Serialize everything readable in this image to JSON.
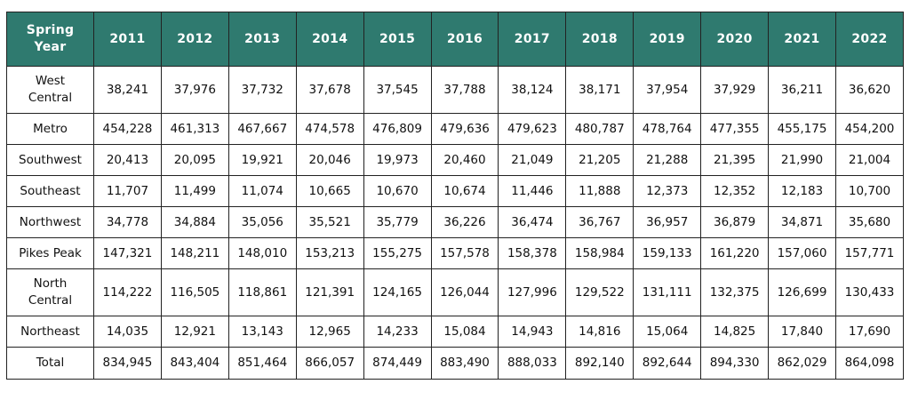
{
  "table": {
    "header": {
      "first_line1": "Spring",
      "first_line2": "Year",
      "years": [
        "2011",
        "2012",
        "2013",
        "2014",
        "2015",
        "2016",
        "2017",
        "2018",
        "2019",
        "2020",
        "2021",
        "2022"
      ]
    },
    "rows": [
      {
        "region": "West\nCentral",
        "values": [
          "38,241",
          "37,976",
          "37,732",
          "37,678",
          "37,545",
          "37,788",
          "38,124",
          "38,171",
          "37,954",
          "37,929",
          "36,211",
          "36,620"
        ]
      },
      {
        "region": "Metro",
        "values": [
          "454,228",
          "461,313",
          "467,667",
          "474,578",
          "476,809",
          "479,636",
          "479,623",
          "480,787",
          "478,764",
          "477,355",
          "455,175",
          "454,200"
        ]
      },
      {
        "region": "Southwest",
        "values": [
          "20,413",
          "20,095",
          "19,921",
          "20,046",
          "19,973",
          "20,460",
          "21,049",
          "21,205",
          "21,288",
          "21,395",
          "21,990",
          "21,004"
        ]
      },
      {
        "region": "Southeast",
        "values": [
          "11,707",
          "11,499",
          "11,074",
          "10,665",
          "10,670",
          "10,674",
          "11,446",
          "11,888",
          "12,373",
          "12,352",
          "12,183",
          "10,700"
        ]
      },
      {
        "region": "Northwest",
        "values": [
          "34,778",
          "34,884",
          "35,056",
          "35,521",
          "35,779",
          "36,226",
          "36,474",
          "36,767",
          "36,957",
          "36,879",
          "34,871",
          "35,680"
        ]
      },
      {
        "region": "Pikes Peak",
        "values": [
          "147,321",
          "148,211",
          "148,010",
          "153,213",
          "155,275",
          "157,578",
          "158,378",
          "158,984",
          "159,133",
          "161,220",
          "157,060",
          "157,771"
        ]
      },
      {
        "region": "North\nCentral",
        "values": [
          "114,222",
          "116,505",
          "118,861",
          "121,391",
          "124,165",
          "126,044",
          "127,996",
          "129,522",
          "131,111",
          "132,375",
          "126,699",
          "130,433"
        ]
      },
      {
        "region": "Northeast",
        "values": [
          "14,035",
          "12,921",
          "13,143",
          "12,965",
          "14,233",
          "15,084",
          "14,943",
          "14,816",
          "15,064",
          "14,825",
          "17,840",
          "17,690"
        ]
      },
      {
        "region": "Total",
        "values": [
          "834,945",
          "843,404",
          "851,464",
          "866,057",
          "874,449",
          "883,490",
          "888,033",
          "892,140",
          "892,644",
          "894,330",
          "862,029",
          "864,098"
        ]
      }
    ]
  },
  "colors": {
    "header_bg": "#2f7a6f",
    "header_text": "#ffffff",
    "border": "#222222"
  }
}
